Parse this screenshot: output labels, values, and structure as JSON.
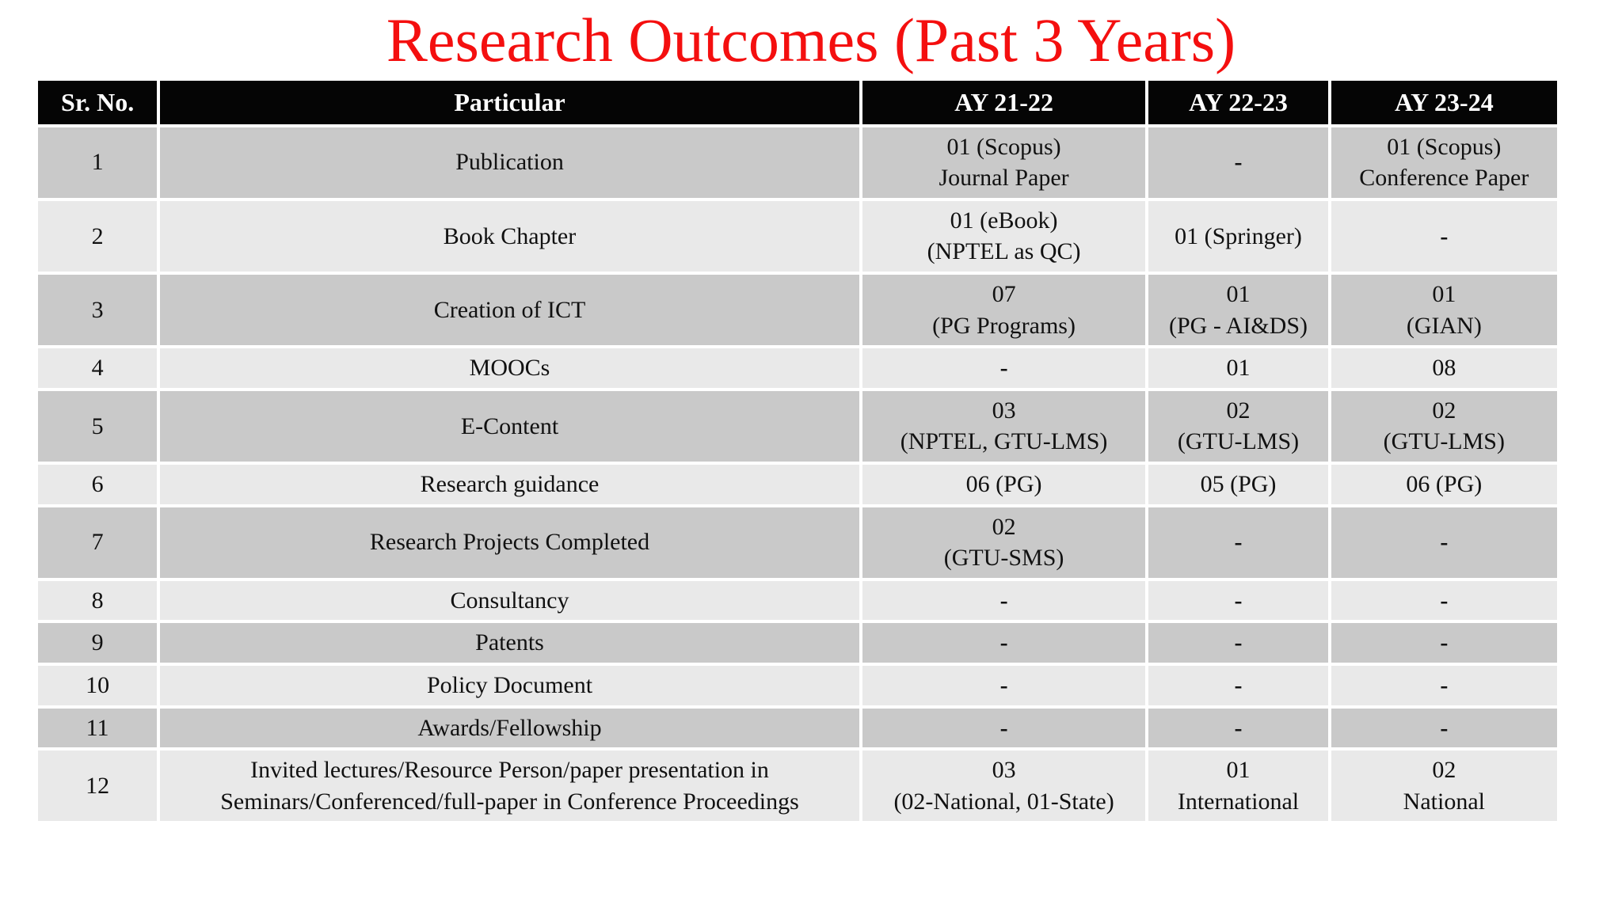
{
  "title": "Research Outcomes (Past 3 Years)",
  "colors": {
    "title_red": "#f40f0f",
    "header_bg": "#050505",
    "header_text": "#ffffff",
    "row_dark": "#c9c9c9",
    "row_light": "#e9e9e9"
  },
  "table": {
    "headers": [
      "Sr. No.",
      "Particular",
      "AY 21-22",
      "AY 22-23",
      "AY 23-24"
    ],
    "rows": [
      {
        "cells": [
          "1",
          "Publication",
          "01 (Scopus)\nJournal Paper",
          "-",
          "01 (Scopus)\nConference Paper"
        ]
      },
      {
        "cells": [
          "2",
          "Book Chapter",
          "01 (eBook)\n(NPTEL as QC)",
          "01 (Springer)",
          "-"
        ]
      },
      {
        "cells": [
          "3",
          "Creation of ICT",
          "07\n(PG Programs)",
          "01\n(PG - AI&DS)",
          "01\n(GIAN)"
        ]
      },
      {
        "cells": [
          "4",
          "MOOCs",
          "-",
          "01",
          "08"
        ]
      },
      {
        "cells": [
          "5",
          "E-Content",
          "03\n(NPTEL, GTU-LMS)",
          "02\n(GTU-LMS)",
          "02\n(GTU-LMS)"
        ]
      },
      {
        "cells": [
          "6",
          "Research guidance",
          "06 (PG)",
          "05 (PG)",
          "06 (PG)"
        ]
      },
      {
        "cells": [
          "7",
          "Research Projects Completed",
          "02\n(GTU-SMS)",
          "-",
          "-"
        ]
      },
      {
        "cells": [
          "8",
          "Consultancy",
          "-",
          "-",
          "-"
        ]
      },
      {
        "cells": [
          "9",
          "Patents",
          "-",
          "-",
          "-"
        ]
      },
      {
        "cells": [
          "10",
          "Policy Document",
          "-",
          "-",
          "-"
        ]
      },
      {
        "cells": [
          "11",
          "Awards/Fellowship",
          "-",
          "-",
          "-"
        ]
      },
      {
        "cells": [
          "12",
          "Invited lectures/Resource Person/paper presentation in\nSeminars/Conferenced/full-paper in Conference Proceedings",
          "03\n(02-National, 01-State)",
          "01\nInternational",
          "02\nNational"
        ]
      }
    ]
  }
}
